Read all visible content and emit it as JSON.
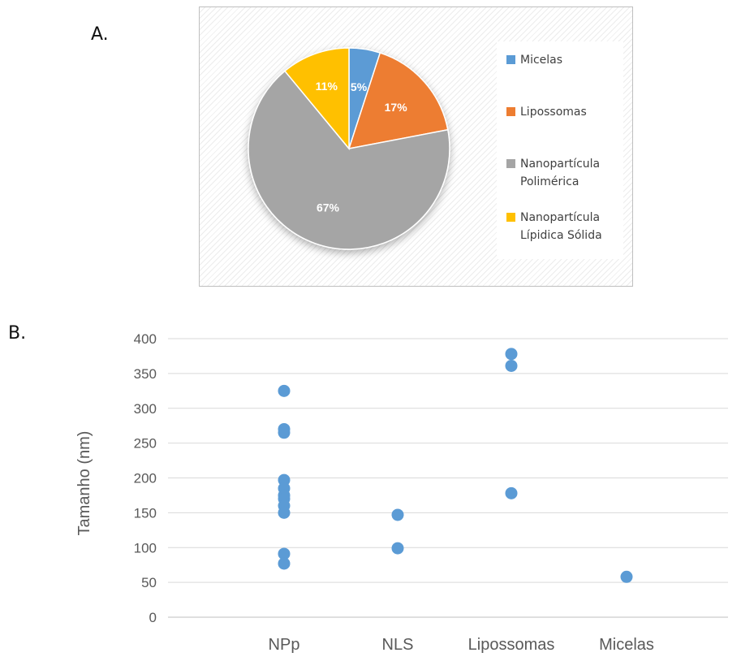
{
  "panel_a_label": "A.",
  "panel_b_label": "B.",
  "chart_data": [
    {
      "type": "pie",
      "title": "",
      "legend_position": "right",
      "slices": [
        {
          "label": "Micelas",
          "value": 5,
          "display": "5%",
          "color": "#5b9bd5"
        },
        {
          "label": "Lipossomas",
          "value": 17,
          "display": "17%",
          "color": "#ed7d31"
        },
        {
          "label": "Nanopartícula Polimérica",
          "legend_lines": [
            "Nanopartícula",
            "Polimérica"
          ],
          "value": 67,
          "display": "67%",
          "color": "#a5a5a5"
        },
        {
          "label": "Nanopartícula Lípidica Sólida",
          "legend_lines": [
            "Nanopartícula",
            "Lípidica Sólida"
          ],
          "value": 11,
          "display": "11%",
          "color": "#ffc000"
        }
      ]
    },
    {
      "type": "scatter",
      "title": "",
      "xlabel": "",
      "ylabel": "Tamanho (nm)",
      "categories": [
        "NPp",
        "NLS",
        "Lipossomas",
        "Micelas"
      ],
      "ylim": [
        0,
        400
      ],
      "yticks": [
        0,
        50,
        100,
        150,
        200,
        250,
        300,
        350,
        400
      ],
      "grid": "horizontal",
      "marker_color": "#5b9bd5",
      "points": [
        {
          "category": "NPp",
          "y": 325
        },
        {
          "category": "NPp",
          "y": 270
        },
        {
          "category": "NPp",
          "y": 265
        },
        {
          "category": "NPp",
          "y": 197
        },
        {
          "category": "NPp",
          "y": 185
        },
        {
          "category": "NPp",
          "y": 175
        },
        {
          "category": "NPp",
          "y": 170
        },
        {
          "category": "NPp",
          "y": 160
        },
        {
          "category": "NPp",
          "y": 150
        },
        {
          "category": "NPp",
          "y": 91
        },
        {
          "category": "NPp",
          "y": 77
        },
        {
          "category": "NLS",
          "y": 147
        },
        {
          "category": "NLS",
          "y": 99
        },
        {
          "category": "Lipossomas",
          "y": 378
        },
        {
          "category": "Lipossomas",
          "y": 361
        },
        {
          "category": "Lipossomas",
          "y": 178
        },
        {
          "category": "Micelas",
          "y": 58
        }
      ]
    }
  ]
}
